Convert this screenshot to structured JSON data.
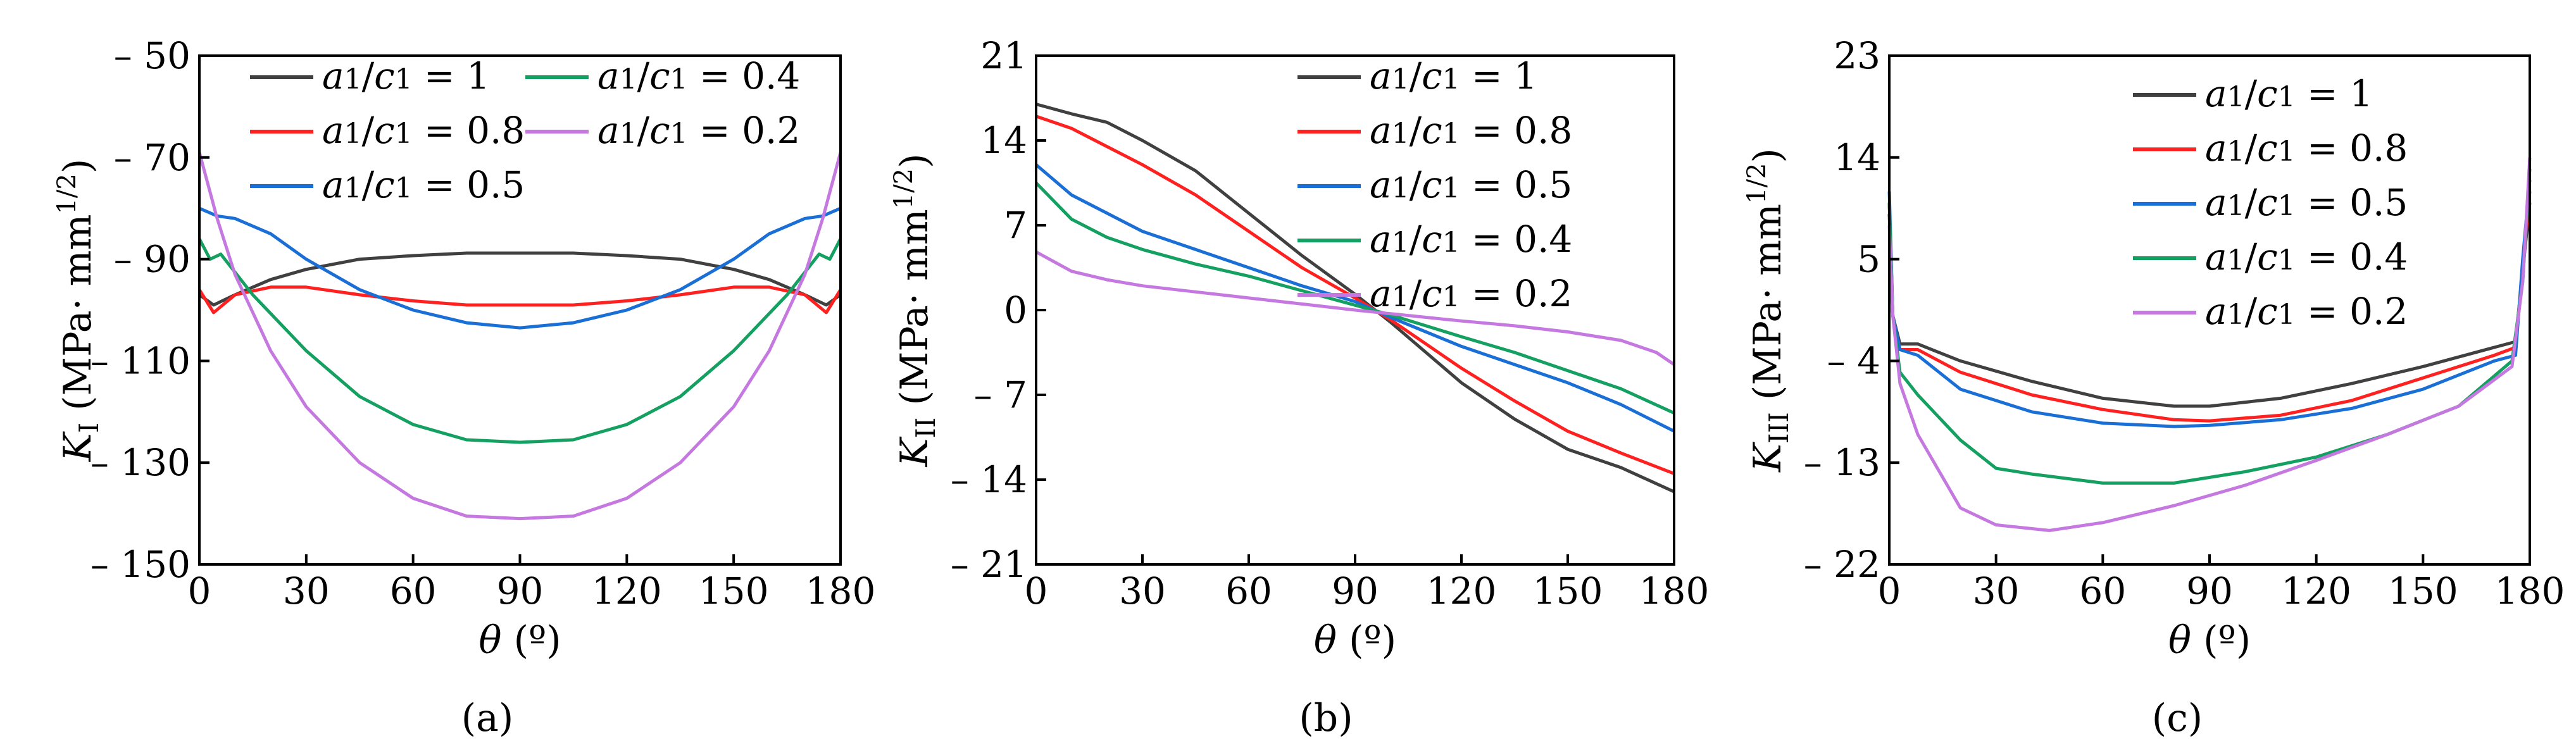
{
  "chart_data": [
    {
      "type": "line",
      "panel_label": "(a)",
      "title": "",
      "xlabel": "θ (º)",
      "ylabel": "K_I (MPa· mm^1/2)",
      "ylabel_main": "K",
      "ylabel_sub": "I",
      "ylabel_unit": "(MPa· mm",
      "ylabel_exp": "1/2",
      "ylabel_close": ")",
      "xlim": [
        0,
        180
      ],
      "ylim": [
        -150,
        -50
      ],
      "xticks": [
        0,
        30,
        60,
        90,
        120,
        150,
        180
      ],
      "yticks": [
        -50,
        -70,
        -90,
        -110,
        -130,
        -150
      ],
      "ytick_labels": [
        "– 50",
        "– 70",
        "– 90",
        "– 110",
        "– 130",
        "– 150"
      ],
      "grid": false,
      "legend_position": "top",
      "series": [
        {
          "name": "a1/c1 = 1",
          "color": "#404040",
          "x": [
            0,
            4,
            10,
            20,
            30,
            45,
            60,
            75,
            90,
            105,
            120,
            135,
            150,
            160,
            170,
            176,
            180
          ],
          "y": [
            -97,
            -99,
            -97,
            -94,
            -92,
            -90,
            -89.3,
            -88.8,
            -88.8,
            -88.8,
            -89.3,
            -90,
            -92,
            -94,
            -97,
            -99,
            -97
          ]
        },
        {
          "name": "a1/c1 = 0.8",
          "color": "#ff2020",
          "x": [
            0,
            4,
            10,
            20,
            30,
            45,
            60,
            75,
            90,
            105,
            120,
            135,
            150,
            160,
            170,
            176,
            180
          ],
          "y": [
            -96,
            -100.5,
            -97,
            -95.5,
            -95.5,
            -97,
            -98.2,
            -99,
            -99,
            -99,
            -98.2,
            -97,
            -95.5,
            -95.5,
            -97,
            -100.5,
            -96
          ]
        },
        {
          "name": "a1/c1 = 0.5",
          "color": "#1a6fd6",
          "x": [
            0,
            5,
            10,
            20,
            30,
            45,
            60,
            75,
            90,
            105,
            120,
            135,
            150,
            160,
            170,
            175,
            180
          ],
          "y": [
            -80,
            -81.5,
            -82,
            -85,
            -90,
            -96,
            -100,
            -102.5,
            -103.5,
            -102.5,
            -100,
            -96,
            -90,
            -85,
            -82,
            -81.5,
            -80
          ]
        },
        {
          "name": "a1/c1 = 0.4",
          "color": "#14a060",
          "x": [
            0,
            3,
            6,
            15,
            30,
            45,
            60,
            75,
            90,
            105,
            120,
            135,
            150,
            165,
            174,
            177,
            180
          ],
          "y": [
            -86,
            -90,
            -89,
            -97,
            -108,
            -117,
            -122.5,
            -125.5,
            -126,
            -125.5,
            -122.5,
            -117,
            -108,
            -97,
            -89,
            -90,
            -86
          ]
        },
        {
          "name": "a1/c1 = 0.2",
          "color": "#c478e0",
          "x": [
            0,
            5,
            10,
            20,
            30,
            45,
            60,
            75,
            90,
            105,
            120,
            135,
            150,
            160,
            170,
            175,
            180
          ],
          "y": [
            -69,
            -82,
            -93,
            -108,
            -119,
            -130,
            -137,
            -140.5,
            -141,
            -140.5,
            -137,
            -130,
            -119,
            -108,
            -93,
            -82,
            -69
          ]
        }
      ]
    },
    {
      "type": "line",
      "panel_label": "(b)",
      "title": "",
      "xlabel": "θ (º)",
      "ylabel": "K_II (MPa· mm^1/2)",
      "ylabel_main": "K",
      "ylabel_sub": "II",
      "ylabel_unit": "(MPa· mm",
      "ylabel_exp": "1/2",
      "ylabel_close": ")",
      "xlim": [
        0,
        180
      ],
      "ylim": [
        -21,
        21
      ],
      "xticks": [
        0,
        30,
        60,
        90,
        120,
        150,
        180
      ],
      "yticks": [
        21,
        14,
        7,
        0,
        -7,
        -14,
        -21
      ],
      "ytick_labels": [
        "21",
        "14",
        "7",
        "0",
        "– 7",
        "– 14",
        "– 21"
      ],
      "grid": false,
      "legend_position": "top-right",
      "series": [
        {
          "name": "a1/c1 = 1",
          "color": "#404040",
          "x": [
            0,
            10,
            20,
            30,
            45,
            60,
            75,
            90,
            100,
            110,
            120,
            135,
            150,
            165,
            180
          ],
          "y": [
            17,
            16.2,
            15.5,
            14,
            11.5,
            8,
            4.5,
            1.3,
            -1,
            -3.5,
            -6,
            -9,
            -11.5,
            -13,
            -15
          ]
        },
        {
          "name": "a1/c1 = 0.8",
          "color": "#ff2020",
          "x": [
            0,
            10,
            20,
            30,
            45,
            60,
            75,
            90,
            100,
            110,
            120,
            135,
            150,
            165,
            180
          ],
          "y": [
            16,
            15,
            13.5,
            12,
            9.5,
            6.5,
            3.5,
            1,
            -0.8,
            -2.8,
            -4.8,
            -7.5,
            -10,
            -11.8,
            -13.5
          ]
        },
        {
          "name": "a1/c1 = 0.5",
          "color": "#1a6fd6",
          "x": [
            0,
            10,
            20,
            30,
            45,
            60,
            75,
            90,
            100,
            110,
            120,
            135,
            150,
            165,
            180
          ],
          "y": [
            12,
            9.5,
            8,
            6.5,
            5,
            3.5,
            2,
            0.7,
            -0.6,
            -1.8,
            -3,
            -4.5,
            -6,
            -7.8,
            -10
          ]
        },
        {
          "name": "a1/c1 = 0.4",
          "color": "#14a060",
          "x": [
            0,
            10,
            20,
            30,
            45,
            60,
            75,
            90,
            100,
            110,
            120,
            135,
            150,
            165,
            180
          ],
          "y": [
            10.5,
            7.5,
            6,
            5,
            3.8,
            2.8,
            1.6,
            0.4,
            -0.4,
            -1.3,
            -2.2,
            -3.5,
            -5,
            -6.5,
            -8.5
          ]
        },
        {
          "name": "a1/c1 = 0.2",
          "color": "#c478e0",
          "x": [
            0,
            10,
            20,
            30,
            45,
            60,
            75,
            90,
            100,
            110,
            120,
            135,
            150,
            165,
            175,
            180
          ],
          "y": [
            4.8,
            3.2,
            2.5,
            2,
            1.5,
            1,
            0.5,
            0,
            -0.3,
            -0.6,
            -0.9,
            -1.3,
            -1.8,
            -2.5,
            -3.5,
            -4.5
          ]
        }
      ]
    },
    {
      "type": "line",
      "panel_label": "(c)",
      "title": "",
      "xlabel": "θ (º)",
      "ylabel": "K_III (MPa· mm^1/2)",
      "ylabel_main": "K",
      "ylabel_sub": "III",
      "ylabel_unit": "(MPa· mm",
      "ylabel_exp": "1/2",
      "ylabel_close": ")",
      "xlim": [
        0,
        180
      ],
      "ylim": [
        -22,
        23
      ],
      "xticks": [
        0,
        30,
        60,
        90,
        120,
        150,
        180
      ],
      "yticks": [
        23,
        14,
        5,
        -4,
        -13,
        -22
      ],
      "ytick_labels": [
        "23",
        "14",
        "5",
        "– 4",
        "– 13",
        "– 22"
      ],
      "grid": false,
      "legend_position": "top-right",
      "series": [
        {
          "name": "a1/c1 = 1",
          "color": "#404040",
          "x": [
            0,
            1,
            3,
            8,
            20,
            40,
            60,
            80,
            90,
            110,
            130,
            150,
            170,
            176,
            178,
            180
          ],
          "y": [
            9,
            0,
            -2.5,
            -2.5,
            -4,
            -5.8,
            -7.3,
            -8,
            -8,
            -7.3,
            -6,
            -4.5,
            -2.8,
            -2.3,
            4,
            10
          ]
        },
        {
          "name": "a1/c1 = 0.8",
          "color": "#ff2020",
          "x": [
            0,
            1,
            3,
            8,
            20,
            40,
            60,
            80,
            90,
            110,
            130,
            150,
            170,
            176,
            178,
            180
          ],
          "y": [
            10,
            0,
            -3,
            -3,
            -5,
            -7,
            -8.3,
            -9.2,
            -9.3,
            -8.8,
            -7.5,
            -5.5,
            -3.5,
            -2.8,
            4,
            11
          ]
        },
        {
          "name": "a1/c1 = 0.5",
          "color": "#1a6fd6",
          "x": [
            0,
            1,
            3,
            8,
            20,
            40,
            60,
            80,
            90,
            110,
            130,
            150,
            170,
            176,
            178,
            180
          ],
          "y": [
            11,
            0,
            -3,
            -3.5,
            -6.5,
            -8.5,
            -9.5,
            -9.8,
            -9.7,
            -9.2,
            -8.2,
            -6.5,
            -4,
            -3.5,
            5,
            12
          ]
        },
        {
          "name": "a1/c1 = 0.4",
          "color": "#14a060",
          "x": [
            0,
            1,
            3,
            8,
            20,
            30,
            40,
            60,
            80,
            100,
            120,
            140,
            160,
            175,
            178,
            180
          ],
          "y": [
            10,
            0,
            -5,
            -7,
            -11,
            -13.5,
            -14,
            -14.8,
            -14.8,
            -13.8,
            -12.5,
            -10.5,
            -8,
            -4,
            3,
            13
          ]
        },
        {
          "name": "a1/c1 = 0.2",
          "color": "#c478e0",
          "x": [
            0,
            1,
            3,
            8,
            20,
            30,
            45,
            60,
            80,
            100,
            120,
            140,
            160,
            175,
            178,
            180
          ],
          "y": [
            8,
            0,
            -6,
            -10.5,
            -17,
            -18.5,
            -19,
            -18.3,
            -16.8,
            -15,
            -12.8,
            -10.5,
            -8,
            -4.5,
            3,
            14
          ]
        }
      ]
    }
  ]
}
